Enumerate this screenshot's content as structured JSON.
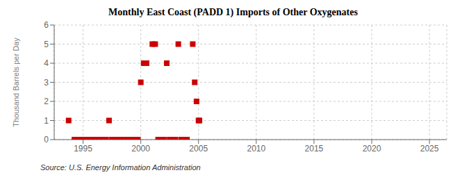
{
  "chart_data": {
    "type": "scatter",
    "title": "Monthly East Coast (PADD 1) Imports of Other Oxygenates",
    "ylabel": "Thousand Barrels per Day",
    "source": "Source: U.S. Energy Information Administration",
    "x": [
      1993.75,
      1997.25,
      1994.25,
      1994.5,
      1994.75,
      1995.0,
      1995.25,
      1995.5,
      1995.75,
      1996.0,
      1996.25,
      1996.5,
      1996.75,
      1997.0,
      1997.5,
      1997.75,
      1998.0,
      1998.25,
      1998.5,
      1998.75,
      1999.0,
      1999.25,
      1999.5,
      1999.75,
      2000.0,
      2000.25,
      2000.5,
      2001.0,
      2001.25,
      2001.5,
      2001.75,
      2002.0,
      2002.25,
      2002.5,
      2002.75,
      2003.0,
      2003.25,
      2003.5,
      2003.75,
      2004.0,
      2004.5,
      2004.67,
      2004.83,
      2005.0,
      2005.08
    ],
    "values": [
      1,
      1,
      0,
      0,
      0,
      0,
      0,
      0,
      0,
      0,
      0,
      0,
      0,
      0,
      0,
      0,
      0,
      0,
      0,
      0,
      0,
      0,
      0,
      0,
      3,
      4,
      4,
      5,
      5,
      0,
      0,
      0,
      4,
      0,
      0,
      0,
      5,
      0,
      0,
      0,
      5,
      3,
      2,
      1,
      1
    ],
    "color": "#cc0000",
    "marker": "square",
    "xlim": [
      1992.5,
      2026.5
    ],
    "ylim": [
      0,
      6
    ],
    "xticks": [
      1995,
      2000,
      2005,
      2010,
      2015,
      2020,
      2025
    ],
    "yticks": [
      0,
      1,
      2,
      3,
      4,
      5,
      6
    ],
    "grid": true
  }
}
